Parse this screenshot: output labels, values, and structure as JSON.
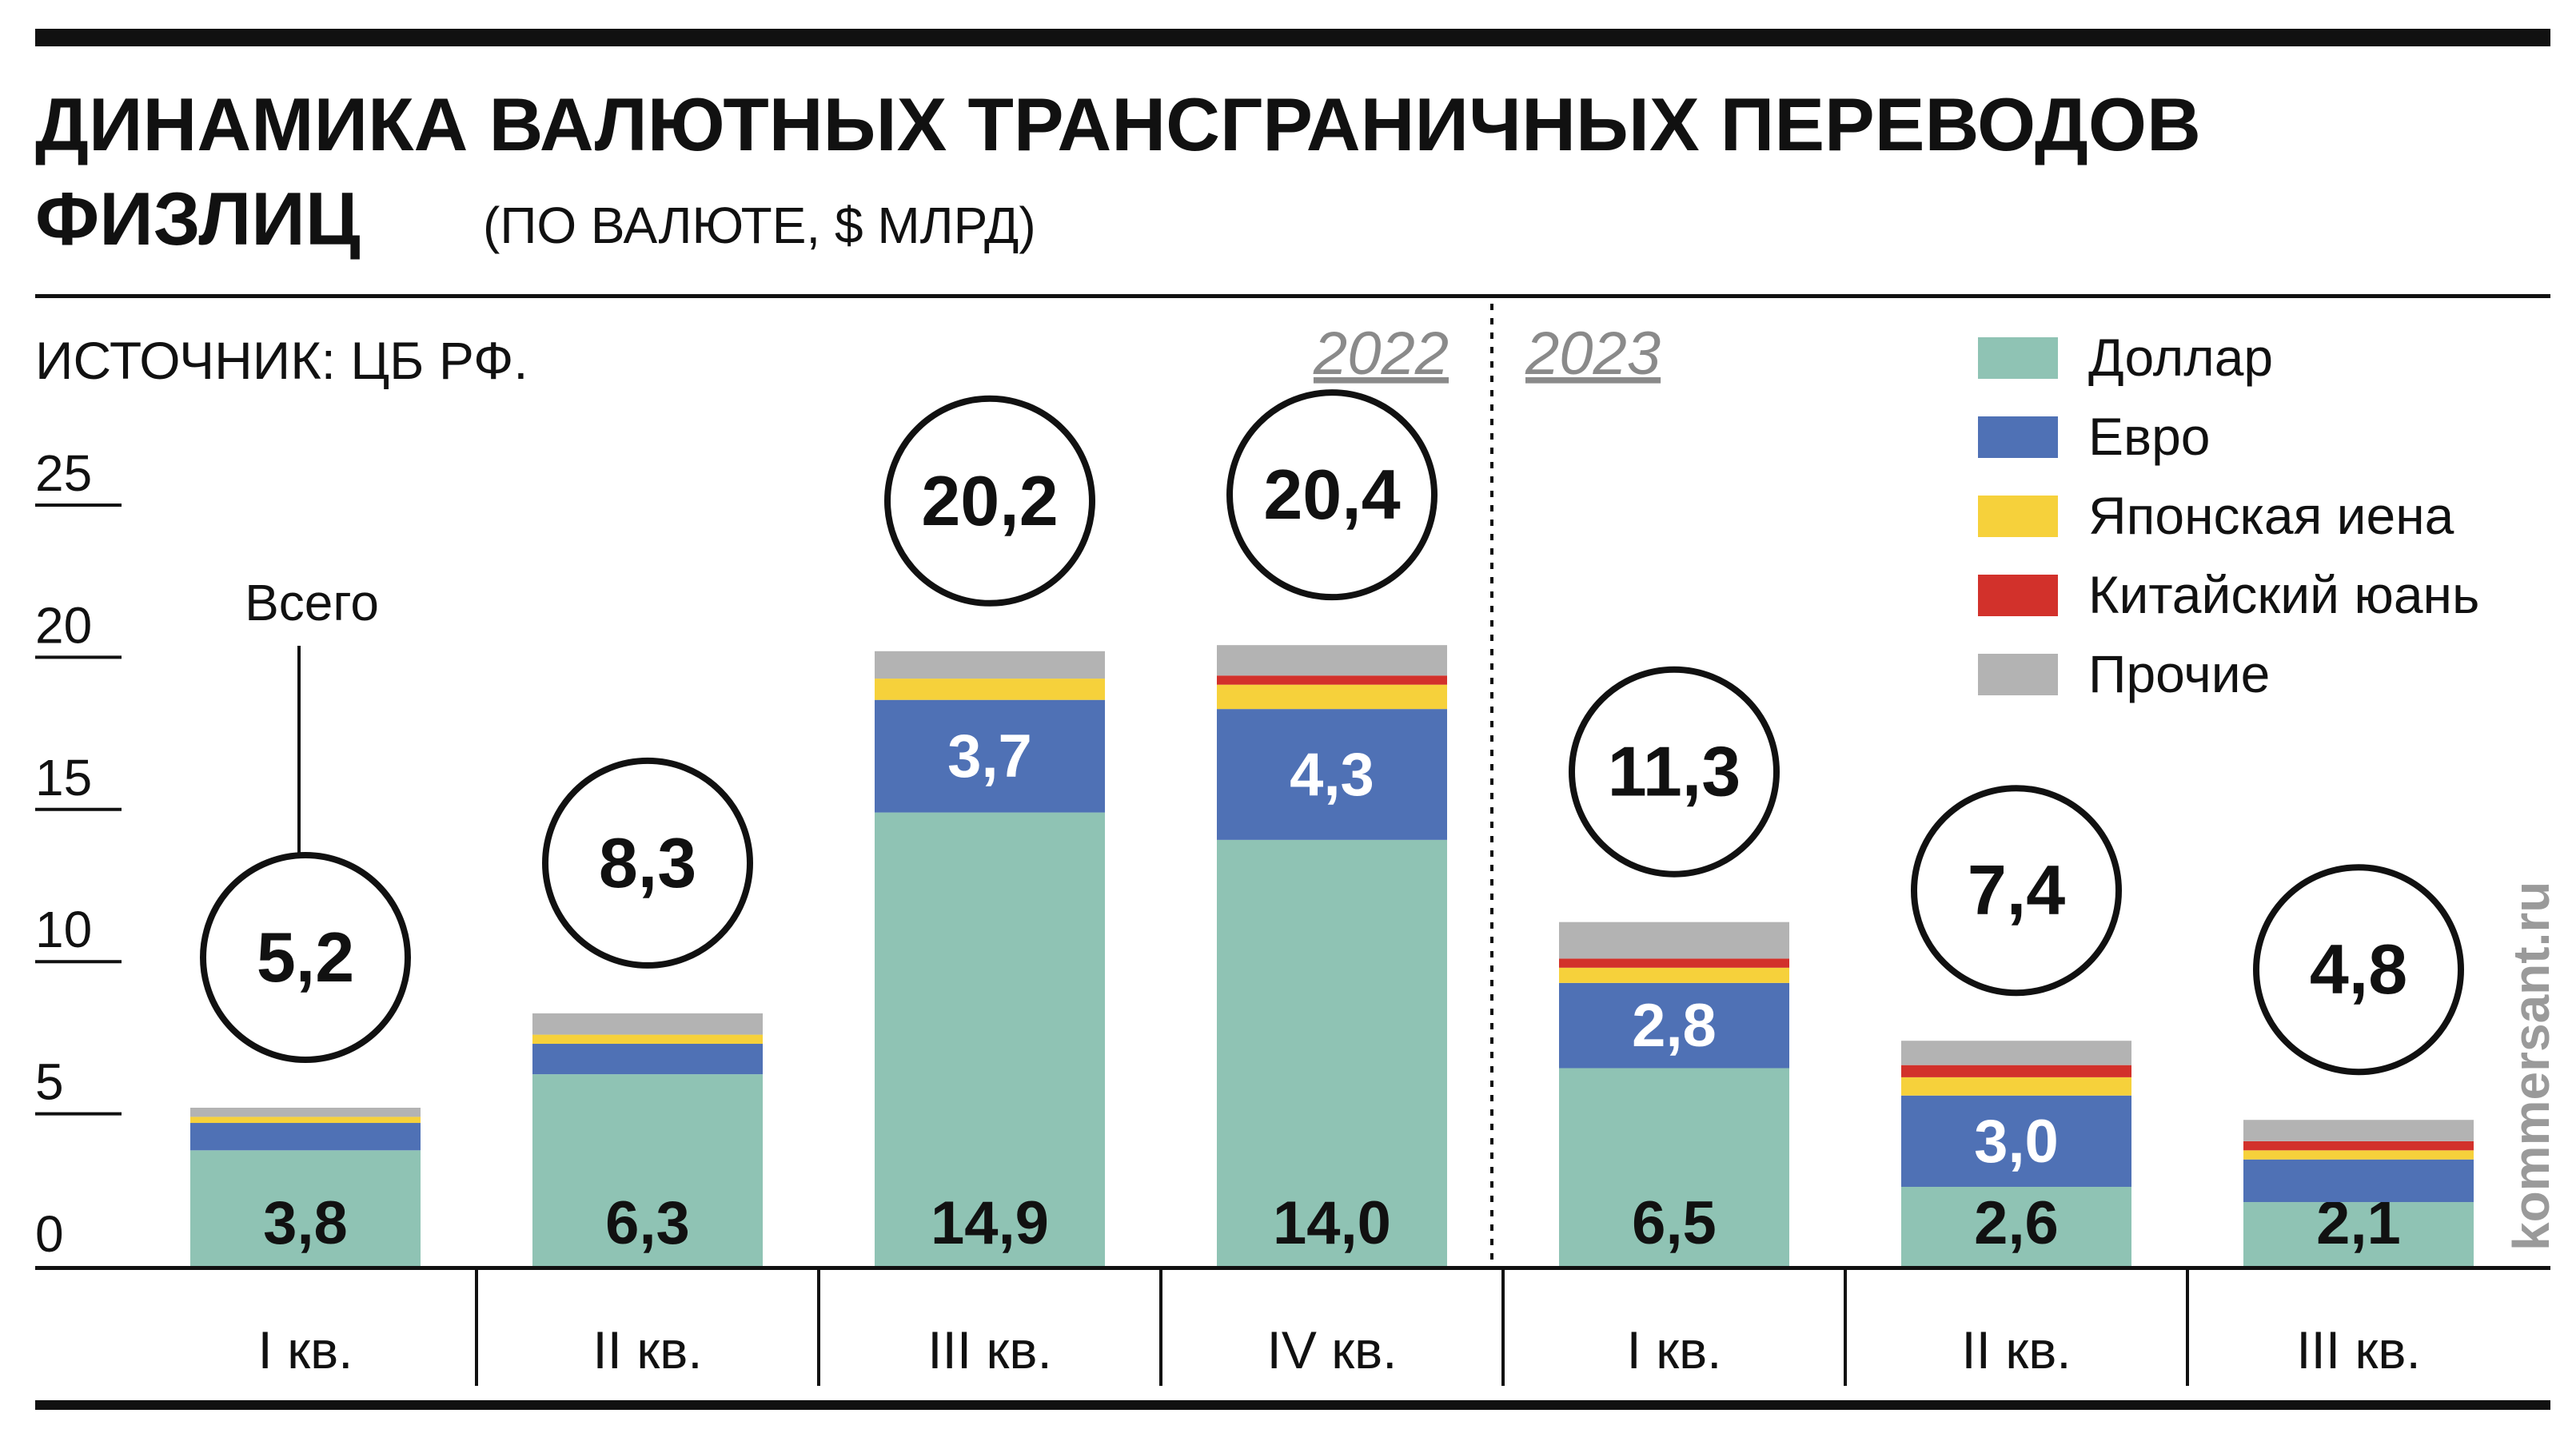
{
  "title_line1": "ДИНАМИКА ВАЛЮТНЫХ ТРАНСГРАНИЧНЫХ ПЕРЕВОДОВ",
  "title_line2": "ФИЗЛИЦ",
  "subtitle": "(ПО ВАЛЮТЕ, $ МЛРД)",
  "source": "ИСТОЧНИК: ЦБ РФ.",
  "watermark": "kommersant.ru",
  "total_callout": "Всего",
  "colors": {
    "dollar": "#8fc3b4",
    "euro": "#4f71b5",
    "yen": "#f6d13b",
    "yuan": "#d2312b",
    "other": "#b3b3b3"
  },
  "chart_data": {
    "type": "bar",
    "stacked": true,
    "title": "ДИНАМИКА ВАЛЮТНЫХ ТРАНСГРАНИЧНЫХ ПЕРЕВОДОВ ФИЗЛИЦ",
    "subtitle": "(ПО ВАЛЮТЕ, $ МЛРД)",
    "years": [
      {
        "label": "2022",
        "start": 0,
        "end": 3
      },
      {
        "label": "2023",
        "start": 4,
        "end": 6
      }
    ],
    "categories": [
      "I кв.",
      "II кв.",
      "III кв.",
      "IV кв.",
      "I кв.",
      "II кв.",
      "III кв."
    ],
    "ylim": [
      0,
      25
    ],
    "yticks": [
      0,
      5,
      10,
      15,
      20,
      25
    ],
    "totals": [
      5.2,
      8.3,
      20.2,
      20.4,
      11.3,
      7.4,
      4.8
    ],
    "total_labels": [
      "5,2",
      "8,3",
      "20,2",
      "20,4",
      "11,3",
      "7,4",
      "4,8"
    ],
    "series": [
      {
        "name": "Доллар",
        "key": "dollar",
        "values": [
          3.8,
          6.3,
          14.9,
          14.0,
          6.5,
          2.6,
          2.1
        ],
        "labels": [
          "3,8",
          "6,3",
          "14,9",
          "14,0",
          "6,5",
          "2,6",
          "2,1"
        ]
      },
      {
        "name": "Евро",
        "key": "euro",
        "values": [
          0.9,
          1.0,
          3.7,
          4.3,
          2.8,
          3.0,
          1.4
        ],
        "labels": [
          "",
          "",
          "3,7",
          "4,3",
          "2,8",
          "3,0",
          ""
        ]
      },
      {
        "name": "Японская иена",
        "key": "yen",
        "values": [
          0.2,
          0.3,
          0.7,
          0.8,
          0.5,
          0.6,
          0.3
        ],
        "labels": [
          "",
          "",
          "",
          "",
          "",
          "",
          ""
        ]
      },
      {
        "name": "Китайский юань",
        "key": "yuan",
        "values": [
          0.0,
          0.0,
          0.0,
          0.3,
          0.3,
          0.4,
          0.3
        ],
        "labels": [
          "",
          "",
          "",
          "",
          "",
          "",
          ""
        ]
      },
      {
        "name": "Прочие",
        "key": "other",
        "values": [
          0.3,
          0.7,
          0.9,
          1.0,
          1.2,
          0.8,
          0.7
        ],
        "labels": [
          "",
          "",
          "",
          "",
          "",
          "",
          ""
        ]
      }
    ],
    "legend_position": "top-right",
    "grid": false
  }
}
